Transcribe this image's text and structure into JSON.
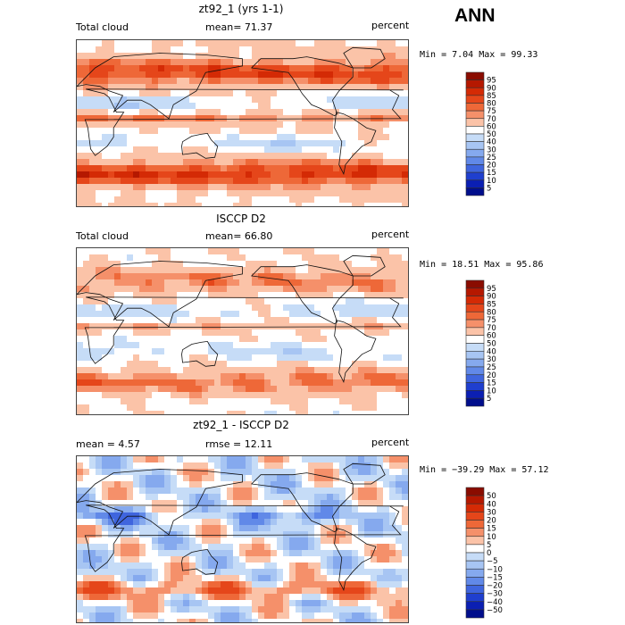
{
  "season": "ANN",
  "panels": [
    {
      "title": "zt92_1 (yrs 1-1)",
      "left_label": "Total cloud",
      "center_label": "mean=  71.37",
      "right_label": "percent",
      "minmax": "Min =   7.04 Max =  99.33",
      "colorbar": {
        "labels": [
          "95",
          "90",
          "85",
          "80",
          "75",
          "70",
          "60",
          "50",
          "40",
          "30",
          "25",
          "20",
          "15",
          "10",
          "5"
        ],
        "colors": [
          "#8a0c00",
          "#b51800",
          "#d42a05",
          "#e5461a",
          "#ee6838",
          "#f5906a",
          "#fbc3a8",
          "#ffffff",
          "#c6dcf7",
          "#a7c5f3",
          "#85a9ee",
          "#6189e8",
          "#3f65de",
          "#1f3fcf",
          "#0b1fb3",
          "#000e8c"
        ]
      },
      "field": "model"
    },
    {
      "title": "ISCCP D2",
      "left_label": "Total cloud",
      "center_label": "mean=  66.80",
      "right_label": "percent",
      "minmax": "Min =  18.51 Max =  95.86",
      "colorbar": {
        "labels": [
          "95",
          "90",
          "85",
          "80",
          "75",
          "70",
          "60",
          "50",
          "40",
          "30",
          "25",
          "20",
          "15",
          "10",
          "5"
        ],
        "colors": [
          "#8a0c00",
          "#b51800",
          "#d42a05",
          "#e5461a",
          "#ee6838",
          "#f5906a",
          "#fbc3a8",
          "#ffffff",
          "#c6dcf7",
          "#a7c5f3",
          "#85a9ee",
          "#6189e8",
          "#3f65de",
          "#1f3fcf",
          "#0b1fb3",
          "#000e8c"
        ]
      },
      "field": "obs"
    },
    {
      "title": "zt92_1 - ISCCP D2",
      "left_label": "mean =   4.57",
      "center_label": "rmse =  12.11",
      "right_label": "percent",
      "minmax": "Min = −39.29 Max =  57.12",
      "colorbar": {
        "labels": [
          "50",
          "40",
          "30",
          "20",
          "15",
          "10",
          "5",
          "0",
          "−5",
          "−10",
          "−15",
          "−20",
          "−30",
          "−40",
          "−50"
        ],
        "colors": [
          "#8a0c00",
          "#b51800",
          "#d42a05",
          "#e5461a",
          "#ee6838",
          "#f5906a",
          "#fbc3a8",
          "#ffffff",
          "#c6dcf7",
          "#a7c5f3",
          "#85a9ee",
          "#6189e8",
          "#3f65de",
          "#1f3fcf",
          "#0b1fb3",
          "#000e8c"
        ]
      },
      "field": "diff"
    }
  ],
  "chart_data": [
    {
      "type": "heatmap",
      "title": "zt92_1 (yrs 1-1)",
      "xlabel": "",
      "ylabel": "",
      "variable": "Total cloud",
      "units": "percent",
      "mean": 71.37,
      "min": 7.04,
      "max": 99.33,
      "contour_levels": [
        5,
        10,
        15,
        20,
        25,
        30,
        40,
        50,
        60,
        70,
        75,
        80,
        85,
        90,
        95
      ]
    },
    {
      "type": "heatmap",
      "title": "ISCCP D2",
      "xlabel": "",
      "ylabel": "",
      "variable": "Total cloud",
      "units": "percent",
      "mean": 66.8,
      "min": 18.51,
      "max": 95.86,
      "contour_levels": [
        5,
        10,
        15,
        20,
        25,
        30,
        40,
        50,
        60,
        70,
        75,
        80,
        85,
        90,
        95
      ]
    },
    {
      "type": "heatmap",
      "title": "zt92_1 - ISCCP D2",
      "xlabel": "",
      "ylabel": "",
      "units": "percent",
      "mean": 4.57,
      "rmse": 12.11,
      "min": -39.29,
      "max": 57.12,
      "contour_levels": [
        -50,
        -40,
        -30,
        -20,
        -15,
        -10,
        -5,
        0,
        5,
        10,
        15,
        20,
        30,
        40,
        50
      ]
    }
  ]
}
